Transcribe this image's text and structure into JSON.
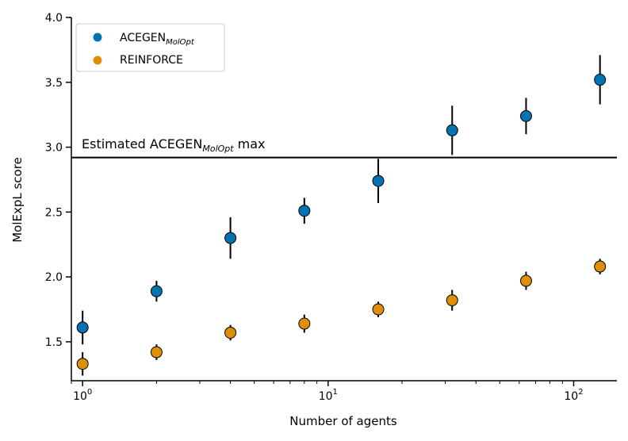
{
  "chart_data": {
    "type": "scatter",
    "title": "",
    "xlabel": "Number of agents",
    "ylabel": "MolExpL score",
    "xscale": "log",
    "xlim": [
      0.9,
      150
    ],
    "ylim": [
      1.2,
      4.0
    ],
    "grid": false,
    "legend_position": "top-left",
    "x_major_ticks": [
      {
        "value": 1,
        "base": "10",
        "exp": "0"
      },
      {
        "value": 10,
        "base": "10",
        "exp": "1"
      },
      {
        "value": 100,
        "base": "10",
        "exp": "2"
      }
    ],
    "y_ticks": [
      {
        "value": 1.5,
        "label": "1.5"
      },
      {
        "value": 2.0,
        "label": "2.0"
      },
      {
        "value": 2.5,
        "label": "2.5"
      },
      {
        "value": 3.0,
        "label": "3.0"
      },
      {
        "value": 3.5,
        "label": "3.5"
      },
      {
        "value": 4.0,
        "label": "4.0"
      }
    ],
    "series": [
      {
        "name": "ACEGEN",
        "name_sub": "MolOpt",
        "color": "#0173b2",
        "x": [
          1,
          2,
          4,
          8,
          16,
          32,
          64,
          128
        ],
        "y": [
          1.61,
          1.89,
          2.3,
          2.51,
          2.74,
          3.13,
          3.24,
          3.52
        ],
        "yerr": [
          0.13,
          0.08,
          0.16,
          0.1,
          0.17,
          0.19,
          0.14,
          0.19
        ]
      },
      {
        "name": "REINFORCE",
        "name_sub": "",
        "color": "#de8f05",
        "x": [
          1,
          2,
          4,
          8,
          16,
          32,
          64,
          128
        ],
        "y": [
          1.33,
          1.42,
          1.57,
          1.64,
          1.75,
          1.82,
          1.97,
          2.08
        ],
        "yerr": [
          0.09,
          0.06,
          0.06,
          0.07,
          0.06,
          0.08,
          0.07,
          0.06
        ]
      }
    ],
    "reference_line": {
      "y": 2.92,
      "label_prefix": "Estimated ACEGEN",
      "label_sub": "MolOpt",
      "label_suffix": " max"
    }
  }
}
